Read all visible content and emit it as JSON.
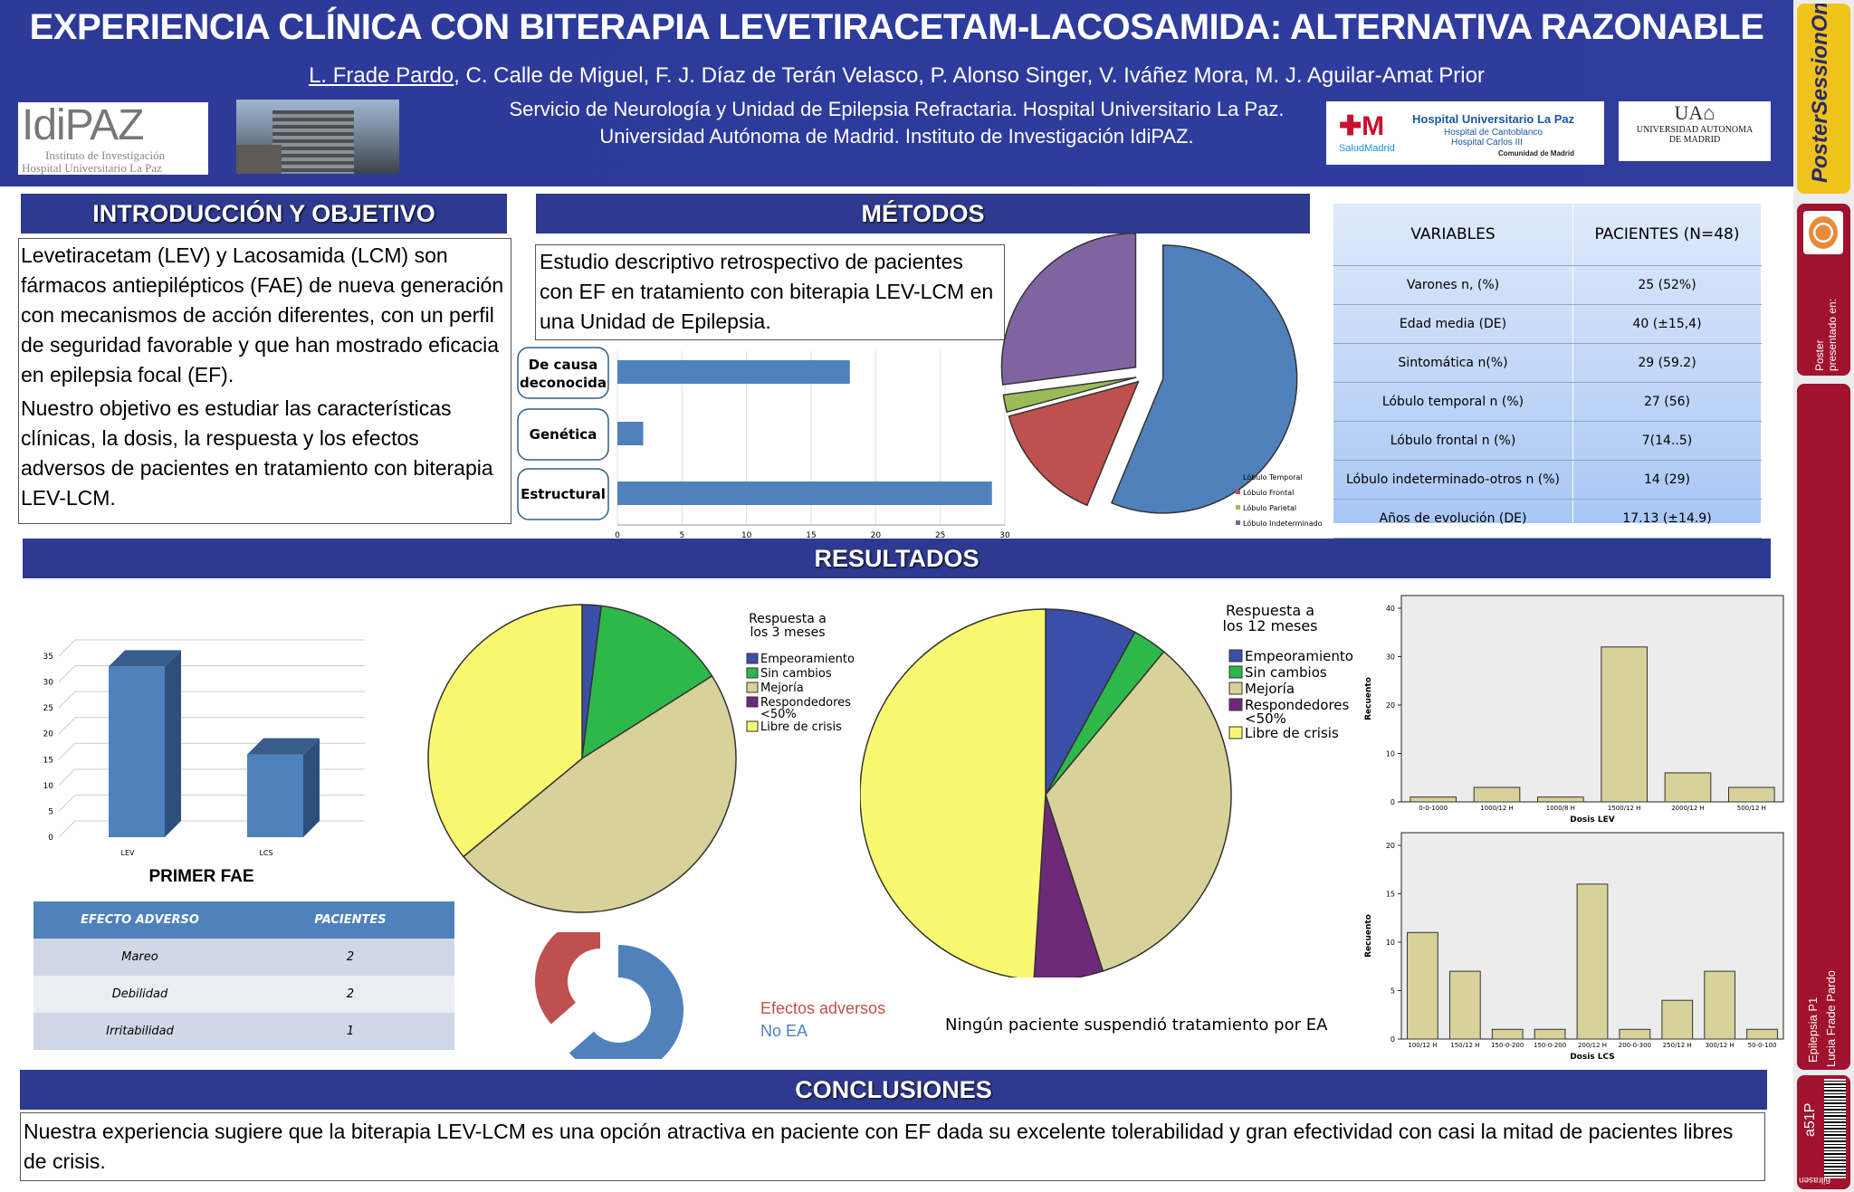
{
  "header": {
    "title": "EXPERIENCIA CLÍNICA CON BITERAPIA LEVETIRACETAM-LACOSAMIDA: ALTERNATIVA RAZONABLE",
    "first_author": "L. Frade Pardo",
    "other_authors": ", C. Calle de Miguel, F. J. Díaz de Terán Velasco, P. Alonso Singer, V. Iváñez Mora, M. J. Aguilar-Amat Prior",
    "affiliation_1": "Servicio de Neurología y Unidad de Epilepsia Refractaria. Hospital Universitario La Paz.",
    "affiliation_2": "Universidad Autónoma de Madrid. Instituto de Investigación IdiPAZ.",
    "logo_idipaz_main": "IdiPAZ",
    "logo_idipaz_sub1": "Instituto de Investigación",
    "logo_idipaz_sub2": "Hospital Universitario La Paz",
    "logo_hospital_name": "Hospital Universitario La Paz",
    "logo_hospital_sub1": "Hospital de Cantoblanco",
    "logo_hospital_sub2": "Hospital Carlos III",
    "logo_salud": "SaludMadrid",
    "logo_comunidad": "Comunidad de Madrid",
    "logo_uam_1": "UNIVERSIDAD AUTONOMA",
    "logo_uam_2": "DE MADRID"
  },
  "sidebar": {
    "brand": "PosterSessionOnline",
    "presentado": "Poster presentado en:",
    "session": "Epilepsia P1",
    "presenter": "Lucia Frade Pardo",
    "code": "a51P",
    "footer": "6ilrasen"
  },
  "intro": {
    "heading": "INTRODUCCIÓN Y OBJETIVO",
    "p1": "Levetiracetam (LEV) y Lacosamida (LCM) son fármacos antiepilépticos (FAE) de nueva generación con mecanismos de acción diferentes, con un perfil de seguridad favorable y que han mostrado eficacia en epilepsia focal (EF).",
    "p2": "Nuestro objetivo es estudiar las características clínicas, la dosis, la respuesta y los efectos adversos de pacientes en tratamiento con biterapia LEV-LCM."
  },
  "methods": {
    "heading": "MÉTODOS",
    "text": "Estudio descriptivo retrospectivo de pacientes con EF en tratamiento con biterapia LEV-LCM en una Unidad de Epilepsia."
  },
  "variables_table": {
    "headers": [
      "VARIABLES",
      "PACIENTES (N=48)"
    ],
    "rows": [
      [
        "Varones n, (%)",
        "25 (52%)"
      ],
      [
        "Edad media (DE)",
        "40 (±15,4)"
      ],
      [
        "Sintomática  n(%)",
        "29 (59.2)"
      ],
      [
        "Lóbulo temporal n (%)",
        "27 (56)"
      ],
      [
        "Lóbulo frontal n (%)",
        "7(14..5)"
      ],
      [
        "Lóbulo indeterminado-otros  n (%)",
        "14 (29)"
      ],
      [
        "Años de evolución (DE)",
        "17.13 (±14.9)"
      ]
    ]
  },
  "results": {
    "heading": "RESULTADOS",
    "primer_fae": "PRIMER FAE",
    "no_suspension": "Ningún paciente suspendió tratamiento por EA"
  },
  "adverse_table": {
    "headers": [
      "EFECTO ADVERSO",
      "PACIENTES"
    ],
    "rows": [
      [
        "Mareo",
        "2"
      ],
      [
        "Debilidad",
        "2"
      ],
      [
        "Irritabilidad",
        "1"
      ]
    ]
  },
  "conclusions": {
    "heading": "CONCLUSIONES",
    "text": "Nuestra experiencia sugiere que la biterapia LEV-LCM es una opción atractiva en paciente con EF dada su excelente tolerabilidad y gran efectividad con casi la mitad de pacientes libres de crisis."
  },
  "colors": {
    "header_blue": "#2e3a97",
    "sidebar_red": "#a0122e",
    "bar_blue": "#4f81bd",
    "yellow": "#faf870",
    "green": "#2eb84a",
    "khaki": "#d8d29a",
    "purple": "#6c2a78",
    "navy": "#3a4fa8"
  },
  "chart_data": [
    {
      "type": "bar",
      "orientation": "horizontal",
      "categories": [
        "De causa deconocida",
        "Genética",
        "Estructural"
      ],
      "values": [
        18,
        2,
        29
      ],
      "xticks": [
        "0",
        "5",
        "10",
        "15",
        "20",
        "25",
        "30"
      ],
      "xlim": [
        0,
        30
      ]
    },
    {
      "type": "pie",
      "labels": [
        "Lóbulo Temporal",
        "Lóbulo Frontal",
        "Lóbulo Parietal",
        "Lóbulo Indeterminado"
      ],
      "values": [
        27,
        7,
        1,
        13
      ],
      "colors": [
        "#4f81bd",
        "#c0504d",
        "#9bbb59",
        "#8064a2"
      ]
    },
    {
      "type": "bar",
      "categories": [
        "LEV",
        "LCS"
      ],
      "values": [
        33,
        16
      ],
      "yticks": [
        "0",
        "5",
        "10",
        "15",
        "20",
        "25",
        "30",
        "35"
      ],
      "ylim": [
        0,
        35
      ],
      "title": "PRIMER FAE"
    },
    {
      "type": "pie",
      "title": "Respuesta a los 3 meses",
      "labels": [
        "Empeoramiento",
        "Sin cambios",
        "Mejoría",
        "Respondedores <50%",
        "Libre de crisis"
      ],
      "values": [
        2,
        14,
        48,
        0,
        36
      ],
      "colors": [
        "#3a4fa8",
        "#2eb84a",
        "#d8d29a",
        "#6c2a78",
        "#faf870"
      ]
    },
    {
      "type": "pie",
      "title": "Respuesta a los 12 meses",
      "labels": [
        "Empeoramiento",
        "Sin cambios",
        "Mejoría",
        "Respondedores <50%",
        "Libre de crisis"
      ],
      "values": [
        8,
        3,
        34,
        6,
        49
      ],
      "colors": [
        "#3a4fa8",
        "#2eb84a",
        "#d8d29a",
        "#6c2a78",
        "#faf870"
      ]
    },
    {
      "type": "pie",
      "subtype": "donut",
      "labels": [
        "Efectos adversos",
        "No EA"
      ],
      "values": [
        5,
        43
      ],
      "colors": [
        "#c0504d",
        "#4f81bd"
      ]
    },
    {
      "type": "bar",
      "categories": [
        "0-0-1000",
        "1000/12 H",
        "1000/8 H",
        "1500/12 H",
        "2000/12 H",
        "500/12 H"
      ],
      "values": [
        1,
        3,
        1,
        32,
        6,
        3
      ],
      "xlabel": "Dosis LEV",
      "ylabel": "Recuento",
      "yticks": [
        "0",
        "10",
        "20",
        "30",
        "40"
      ],
      "ylim": [
        0,
        40
      ]
    },
    {
      "type": "bar",
      "categories": [
        "100/12 H",
        "150/12 H",
        "150-0-200",
        "150-0-200",
        "200/12 H",
        "200-0-300",
        "250/12 H",
        "300/12 H",
        "50-0-100"
      ],
      "values": [
        11,
        7,
        1,
        1,
        16,
        1,
        4,
        7,
        1
      ],
      "xlabel": "Dosis LCS",
      "ylabel": "Recuento",
      "yticks": [
        "0",
        "5",
        "10",
        "15",
        "20"
      ],
      "ylim": [
        0,
        20
      ]
    }
  ]
}
